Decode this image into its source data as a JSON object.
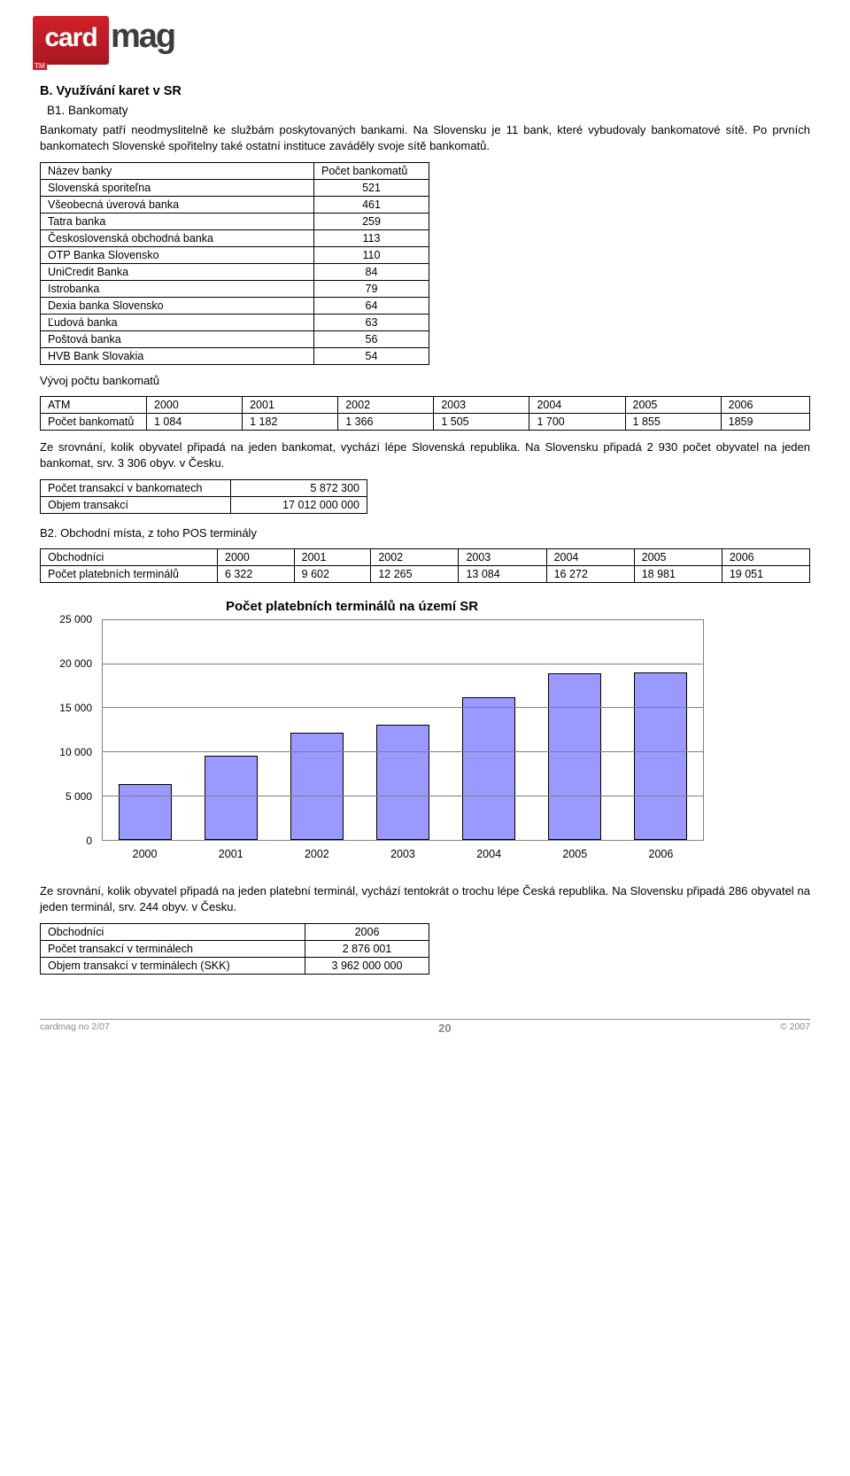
{
  "logo": {
    "card": "card",
    "mag": "mag",
    "tm": "TM"
  },
  "section_b": "B. Využívání karet v SR",
  "section_b1": "B1. Bankomaty",
  "intro_text": "Bankomaty patří neodmyslitelně ke službám poskytovaných bankami. Na Slovensku je 11 bank, které vybudovaly bankomatové sítě. Po prvních bankomatech Slovenské spořitelny také ostatní instituce zaváděly svoje sítě bankomatů.",
  "banks_table": {
    "header": [
      "Název banky",
      "Počet bankomatů"
    ],
    "rows": [
      [
        "Slovenská sporiteľna",
        "521"
      ],
      [
        "Všeobecná úverová banka",
        "461"
      ],
      [
        "Tatra banka",
        "259"
      ],
      [
        "Československá obchodná banka",
        "113"
      ],
      [
        "OTP Banka Slovensko",
        "110"
      ],
      [
        "UniCredit Banka",
        "84"
      ],
      [
        "Istrobanka",
        "79"
      ],
      [
        "Dexia banka Slovensko",
        "64"
      ],
      [
        "Ľudová banka",
        "63"
      ],
      [
        "Poštová banka",
        "56"
      ],
      [
        "HVB Bank Slovakia",
        "54"
      ]
    ]
  },
  "atm_growth_label": "Vývoj počtu bankomatů",
  "atm_growth": {
    "header": [
      "ATM",
      "2000",
      "2001",
      "2002",
      "2003",
      "2004",
      "2005",
      "2006"
    ],
    "row_label": "Počet bankomatů",
    "row": [
      "1 084",
      "1 182",
      "1 366",
      "1 505",
      "1 700",
      "1 855",
      "1859"
    ]
  },
  "compare_text": "Ze srovnání, kolik obyvatel připadá na jeden bankomat, vychází lépe Slovenská republika. Na Slovensku připadá 2 930 počet obyvatel na jeden bankomat, srv. 3 306 obyv. v Česku.",
  "trans_table": {
    "rows": [
      [
        "Počet transakcí v bankomatech",
        "5 872 300"
      ],
      [
        "Objem transakcí",
        "17 012 000 000"
      ]
    ]
  },
  "section_b2": "B2. Obchodní místa, z toho POS terminály",
  "merch_table": {
    "header": [
      "Obchodníci",
      "2000",
      "2001",
      "2002",
      "2003",
      "2004",
      "2005",
      "2006"
    ],
    "row_label": "Počet platebních terminálů",
    "row": [
      "6 322",
      "9 602",
      "12 265",
      "13 084",
      "16 272",
      "18 981",
      "19 051"
    ]
  },
  "chart": {
    "type": "bar",
    "title": "Počet platebních terminálů na území SR",
    "categories": [
      "2000",
      "2001",
      "2002",
      "2003",
      "2004",
      "2005",
      "2006"
    ],
    "values": [
      6322,
      9602,
      12265,
      13084,
      16272,
      18981,
      19051
    ],
    "ylim": [
      0,
      25000
    ],
    "ytick_step": 5000,
    "yticks_labels": [
      "0",
      "5 000",
      "10 000",
      "15 000",
      "20 000",
      "25 000"
    ],
    "bar_color": "#9999ff",
    "bar_border": "#000000",
    "grid_color": "#7f7f7f",
    "background_color": "#ffffff",
    "title_fontsize": 15,
    "label_fontsize": 12,
    "bar_width": 0.62
  },
  "end_text": "Ze srovnání, kolik obyvatel připadá na jeden platební terminál, vychází tentokrát o trochu lépe Česká republika. Na Slovensku připadá 286 obyvatel na jeden terminál, srv. 244 obyv. v Česku.",
  "end_table": {
    "header": [
      "Obchodníci",
      "2006"
    ],
    "rows": [
      [
        "Počet transakcí v terminálech",
        "2 876 001"
      ],
      [
        "Objem transakcí v terminálech (SKK)",
        "3 962 000 000"
      ]
    ]
  },
  "footer": {
    "left": "cardmag no 2/07",
    "page": "20",
    "right": "© 2007"
  }
}
